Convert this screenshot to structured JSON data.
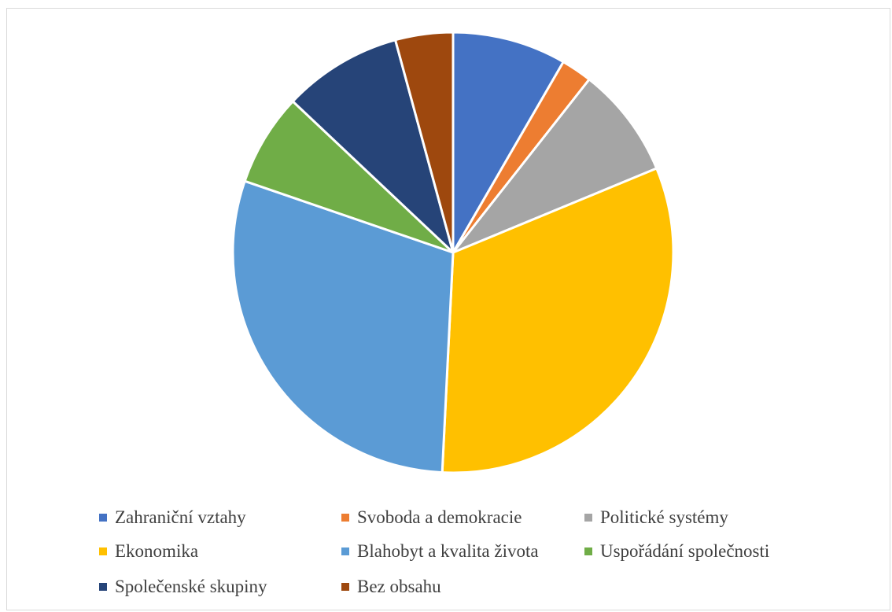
{
  "chart_data": {
    "type": "pie",
    "title": "",
    "categories": [
      "Zahraniční vztahy",
      "Svoboda a demokracie",
      "Politické systémy",
      "Ekonomika",
      "Blahobyt a kvalita života",
      "Uspořádání společnosti",
      "Společenské skupiny",
      "Bez obsahu"
    ],
    "values": [
      8.5,
      2.3,
      8.3,
      32.6,
      30.0,
      6.9,
      8.9,
      4.3
    ],
    "colors": [
      "#4472c4",
      "#ed7d31",
      "#a5a5a5",
      "#ffc000",
      "#5b9bd5",
      "#70ad47",
      "#264478",
      "#9e480e"
    ],
    "legend_position": "bottom",
    "start_angle": "12 o'clock",
    "direction": "clockwise"
  }
}
